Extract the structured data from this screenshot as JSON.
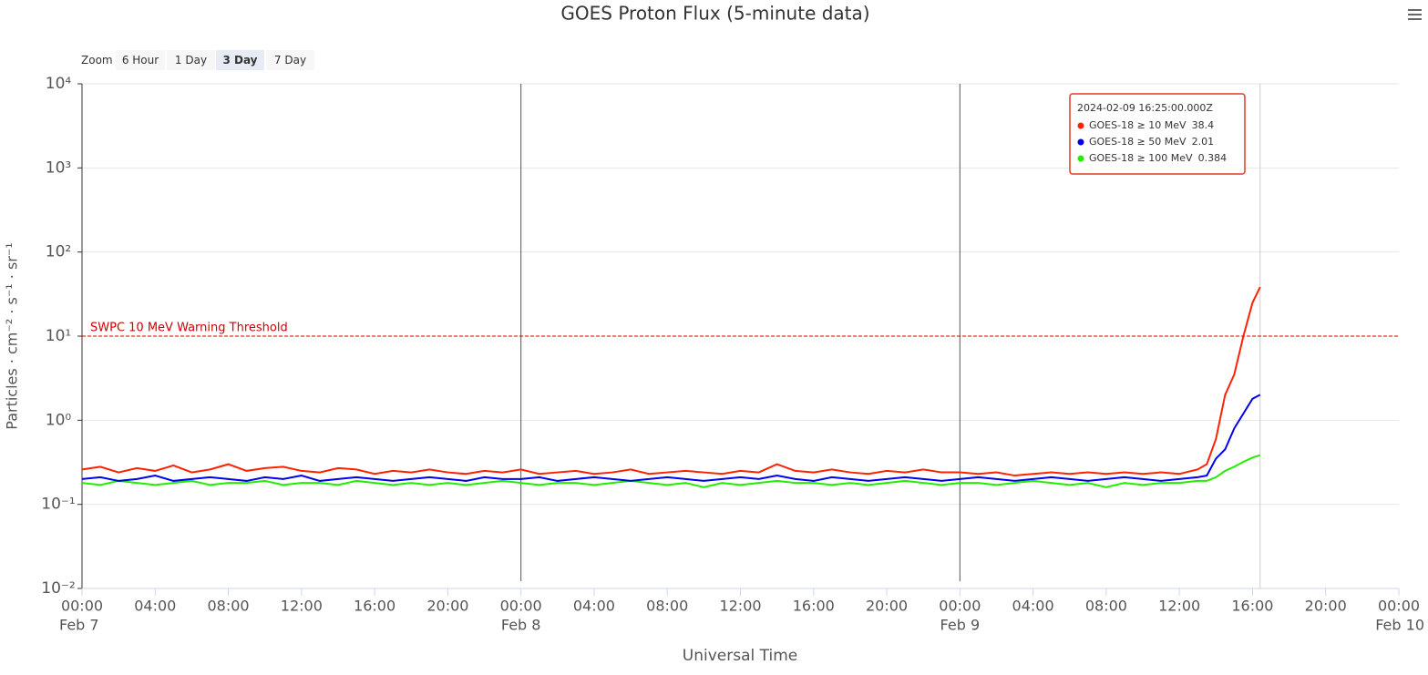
{
  "chart_data": {
    "type": "line",
    "title": "GOES Proton Flux (5-minute data)",
    "y_label": "Particles · cm⁻² · s⁻¹ · sr⁻¹",
    "x_label": "Universal Time",
    "zoom": {
      "label": "Zoom",
      "buttons": [
        "6 Hour",
        "1 Day",
        "3 Day",
        "7 Day"
      ],
      "selected": 2
    },
    "log_y": true,
    "grid": true,
    "ylim": [
      0.01,
      10000
    ],
    "yticks": [
      {
        "value": 0.01,
        "label": "10⁻²"
      },
      {
        "value": 0.1,
        "label": "10⁻¹"
      },
      {
        "value": 1,
        "label": "10⁰"
      },
      {
        "value": 10,
        "label": "10¹"
      },
      {
        "value": 100,
        "label": "10²"
      },
      {
        "value": 1000,
        "label": "10³"
      },
      {
        "value": 10000,
        "label": "10⁴"
      }
    ],
    "xlim": [
      0,
      72
    ],
    "xticks": [
      {
        "value": 0,
        "label": "00:00"
      },
      {
        "value": 4,
        "label": "04:00"
      },
      {
        "value": 8,
        "label": "08:00"
      },
      {
        "value": 12,
        "label": "12:00"
      },
      {
        "value": 16,
        "label": "16:00"
      },
      {
        "value": 20,
        "label": "20:00"
      },
      {
        "value": 24,
        "label": "00:00"
      },
      {
        "value": 28,
        "label": "04:00"
      },
      {
        "value": 32,
        "label": "08:00"
      },
      {
        "value": 36,
        "label": "12:00"
      },
      {
        "value": 40,
        "label": "16:00"
      },
      {
        "value": 44,
        "label": "20:00"
      },
      {
        "value": 48,
        "label": "00:00"
      },
      {
        "value": 52,
        "label": "04:00"
      },
      {
        "value": 56,
        "label": "08:00"
      },
      {
        "value": 60,
        "label": "12:00"
      },
      {
        "value": 64,
        "label": "16:00"
      },
      {
        "value": 68,
        "label": "20:00"
      },
      {
        "value": 72,
        "label": "00:00"
      }
    ],
    "x_date_labels": [
      {
        "value": 0,
        "label": "Feb 7"
      },
      {
        "value": 24,
        "label": "Feb 8"
      },
      {
        "value": 48,
        "label": "Feb 9"
      },
      {
        "value": 72,
        "label": "Feb 10"
      }
    ],
    "threshold": {
      "value": 10,
      "label": "SWPC 10 MeV Warning Threshold",
      "color": "#d00000"
    },
    "tooltip": {
      "header": "2024-02-09 16:25:00.000Z",
      "border": "#e03c28"
    },
    "x": [
      0,
      1,
      2,
      3,
      4,
      5,
      6,
      7,
      8,
      9,
      10,
      11,
      12,
      13,
      14,
      15,
      16,
      17,
      18,
      19,
      20,
      21,
      22,
      23,
      24,
      25,
      26,
      27,
      28,
      29,
      30,
      31,
      32,
      33,
      34,
      35,
      36,
      37,
      38,
      39,
      40,
      41,
      42,
      43,
      44,
      45,
      46,
      47,
      48,
      49,
      50,
      51,
      52,
      53,
      54,
      55,
      56,
      57,
      58,
      59,
      60,
      61,
      61.5,
      62,
      62.5,
      63,
      63.5,
      64,
      64.4167
    ],
    "series": [
      {
        "name": "GOES-18 ≥ 10 MeV",
        "color": "#ff2200",
        "values": [
          0.26,
          0.28,
          0.24,
          0.27,
          0.25,
          0.29,
          0.24,
          0.26,
          0.3,
          0.25,
          0.27,
          0.28,
          0.25,
          0.24,
          0.27,
          0.26,
          0.23,
          0.25,
          0.24,
          0.26,
          0.24,
          0.23,
          0.25,
          0.24,
          0.26,
          0.23,
          0.24,
          0.25,
          0.23,
          0.24,
          0.26,
          0.23,
          0.24,
          0.25,
          0.24,
          0.23,
          0.25,
          0.24,
          0.3,
          0.25,
          0.24,
          0.26,
          0.24,
          0.23,
          0.25,
          0.24,
          0.26,
          0.24,
          0.24,
          0.23,
          0.24,
          0.22,
          0.23,
          0.24,
          0.23,
          0.24,
          0.23,
          0.24,
          0.23,
          0.24,
          0.23,
          0.26,
          0.3,
          0.6,
          2.0,
          3.5,
          10,
          25,
          38.4
        ]
      },
      {
        "name": "GOES-18 ≥ 50 MeV",
        "color": "#0000ee",
        "values": [
          0.2,
          0.21,
          0.19,
          0.2,
          0.22,
          0.19,
          0.2,
          0.21,
          0.2,
          0.19,
          0.21,
          0.2,
          0.22,
          0.19,
          0.2,
          0.21,
          0.2,
          0.19,
          0.2,
          0.21,
          0.2,
          0.19,
          0.21,
          0.2,
          0.2,
          0.21,
          0.19,
          0.2,
          0.21,
          0.2,
          0.19,
          0.2,
          0.21,
          0.2,
          0.19,
          0.2,
          0.21,
          0.2,
          0.22,
          0.2,
          0.19,
          0.21,
          0.2,
          0.19,
          0.2,
          0.21,
          0.2,
          0.19,
          0.2,
          0.21,
          0.2,
          0.19,
          0.2,
          0.21,
          0.2,
          0.19,
          0.2,
          0.21,
          0.2,
          0.19,
          0.2,
          0.21,
          0.22,
          0.35,
          0.45,
          0.8,
          1.2,
          1.8,
          2.01
        ]
      },
      {
        "name": "GOES-18 ≥ 100 MeV",
        "color": "#22ee00",
        "values": [
          0.18,
          0.17,
          0.19,
          0.18,
          0.17,
          0.18,
          0.19,
          0.17,
          0.18,
          0.18,
          0.19,
          0.17,
          0.18,
          0.18,
          0.17,
          0.19,
          0.18,
          0.17,
          0.18,
          0.17,
          0.18,
          0.17,
          0.18,
          0.19,
          0.18,
          0.17,
          0.18,
          0.18,
          0.17,
          0.18,
          0.19,
          0.18,
          0.17,
          0.18,
          0.16,
          0.18,
          0.17,
          0.18,
          0.19,
          0.18,
          0.18,
          0.17,
          0.18,
          0.17,
          0.18,
          0.19,
          0.18,
          0.17,
          0.18,
          0.18,
          0.17,
          0.18,
          0.19,
          0.18,
          0.17,
          0.18,
          0.16,
          0.18,
          0.17,
          0.18,
          0.18,
          0.19,
          0.19,
          0.21,
          0.25,
          0.28,
          0.32,
          0.36,
          0.384
        ]
      }
    ]
  }
}
